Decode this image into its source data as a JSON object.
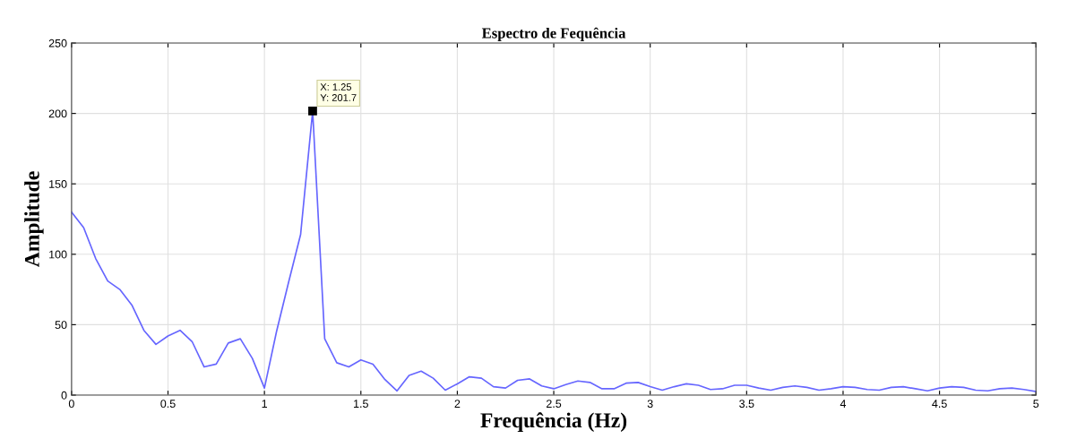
{
  "chart_data": {
    "type": "line",
    "title": "Espectro de Fequência",
    "xlabel": "Frequência (Hz)",
    "ylabel": "Amplitude",
    "x": [
      0,
      0.0625,
      0.125,
      0.1875,
      0.25,
      0.3125,
      0.375,
      0.4375,
      0.5,
      0.5625,
      0.625,
      0.6875,
      0.75,
      0.8125,
      0.875,
      0.9375,
      1.0,
      1.0625,
      1.125,
      1.1875,
      1.25,
      1.3125,
      1.375,
      1.4375,
      1.5,
      1.5625,
      1.625,
      1.6875,
      1.75,
      1.8125,
      1.875,
      1.9375,
      2.0,
      2.0625,
      2.125,
      2.1875,
      2.25,
      2.3125,
      2.375,
      2.4375,
      2.5,
      2.5625,
      2.625,
      2.6875,
      2.75,
      2.8125,
      2.875,
      2.9375,
      3.0,
      3.0625,
      3.125,
      3.1875,
      3.25,
      3.3125,
      3.375,
      3.4375,
      3.5,
      3.5625,
      3.625,
      3.6875,
      3.75,
      3.8125,
      3.875,
      3.9375,
      4.0,
      4.0625,
      4.125,
      4.1875,
      4.25,
      4.3125,
      4.375,
      4.4375,
      4.5,
      4.5625,
      4.625,
      4.6875,
      4.75,
      4.8125,
      4.875,
      4.9375,
      5.0
    ],
    "series": [
      {
        "color": "#6666ff",
        "values": [
          130,
          119,
          97,
          81,
          75,
          64,
          46,
          36,
          42,
          46,
          38,
          20,
          22,
          37,
          40,
          26,
          5,
          45,
          80,
          114,
          201.7,
          40,
          23,
          20,
          25,
          22,
          11,
          3,
          14,
          17,
          12,
          3.5,
          8,
          13,
          12,
          6,
          5,
          10.5,
          11.5,
          6.5,
          4.5,
          7.5,
          10,
          9,
          4.5,
          4.5,
          8.5,
          9,
          6,
          3.5,
          6,
          8,
          7,
          4,
          4.5,
          7,
          7,
          5,
          3.5,
          5.5,
          6.5,
          5.5,
          3.5,
          4.5,
          6,
          5.5,
          4,
          3.5,
          5.5,
          6,
          4.5,
          3,
          5,
          6,
          5.5,
          3.5,
          3,
          4.5,
          5,
          4,
          2.5
        ]
      }
    ],
    "xlim": [
      0,
      5
    ],
    "xticks": [
      0,
      0.5,
      1,
      1.5,
      2,
      2.5,
      3,
      3.5,
      4,
      4.5,
      5
    ],
    "ylim": [
      0,
      250
    ],
    "yticks": [
      0,
      50,
      100,
      150,
      200,
      250
    ],
    "grid": true,
    "marker": "none",
    "line_style": "solid",
    "annotations": [
      {
        "text": "X: 1.25\nY: 201.7",
        "x": 1.25,
        "y": 201.7
      }
    ]
  }
}
